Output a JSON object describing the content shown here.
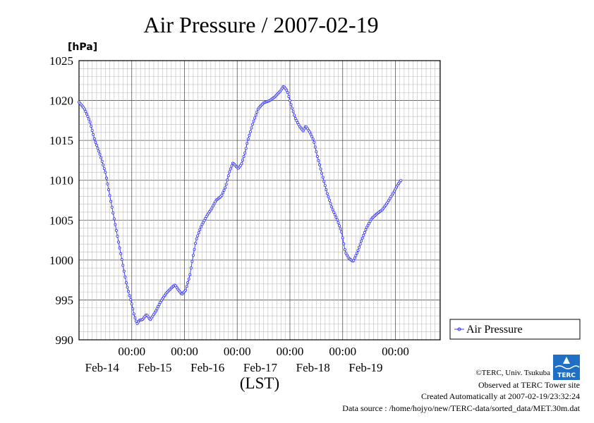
{
  "chart_data": {
    "type": "line",
    "title": "Air Pressure / 2007-02-19",
    "ylabel": "[hPa]",
    "xlabel": "(LST)",
    "ylim": [
      990,
      1025
    ],
    "yticks": [
      990,
      995,
      1000,
      1005,
      1010,
      1015,
      1020,
      1025
    ],
    "xlim_days": [
      13.0,
      19.85
    ],
    "grid": true,
    "legend_position": "right",
    "xticks": [
      {
        "time": "00:00",
        "date": "Feb-14"
      },
      {
        "time": "00:00",
        "date": "Feb-15"
      },
      {
        "time": "00:00",
        "date": "Feb-16"
      },
      {
        "time": "00:00",
        "date": "Feb-17"
      },
      {
        "time": "00:00",
        "date": "Feb-18"
      },
      {
        "time": "00:00",
        "date": "Feb-19"
      }
    ],
    "series": [
      {
        "name": "Air Pressure",
        "color": "#3333ff",
        "marker": "circle",
        "points": [
          [
            13.0,
            1019.8
          ],
          [
            13.1,
            1019.0
          ],
          [
            13.2,
            1017.5
          ],
          [
            13.3,
            1015.0
          ],
          [
            13.4,
            1013.2
          ],
          [
            13.5,
            1011.0
          ],
          [
            13.6,
            1007.5
          ],
          [
            13.7,
            1004.0
          ],
          [
            13.8,
            1000.5
          ],
          [
            13.9,
            997.0
          ],
          [
            14.0,
            994.5
          ],
          [
            14.05,
            993.0
          ],
          [
            14.1,
            992.0
          ],
          [
            14.15,
            992.5
          ],
          [
            14.2,
            992.5
          ],
          [
            14.28,
            993.2
          ],
          [
            14.35,
            992.5
          ],
          [
            14.45,
            993.5
          ],
          [
            14.55,
            994.8
          ],
          [
            14.65,
            995.8
          ],
          [
            14.75,
            996.5
          ],
          [
            14.82,
            996.9
          ],
          [
            14.88,
            996.3
          ],
          [
            14.95,
            995.7
          ],
          [
            15.02,
            996.2
          ],
          [
            15.1,
            998.0
          ],
          [
            15.15,
            1000.0
          ],
          [
            15.22,
            1002.5
          ],
          [
            15.32,
            1004.3
          ],
          [
            15.42,
            1005.5
          ],
          [
            15.52,
            1006.5
          ],
          [
            15.6,
            1007.5
          ],
          [
            15.7,
            1008.0
          ],
          [
            15.78,
            1009.2
          ],
          [
            15.85,
            1011.0
          ],
          [
            15.92,
            1012.2
          ],
          [
            15.97,
            1011.8
          ],
          [
            16.02,
            1011.5
          ],
          [
            16.08,
            1012.0
          ],
          [
            16.15,
            1013.5
          ],
          [
            16.2,
            1015.0
          ],
          [
            16.3,
            1017.2
          ],
          [
            16.4,
            1019.0
          ],
          [
            16.5,
            1019.7
          ],
          [
            16.62,
            1020.0
          ],
          [
            16.72,
            1020.5
          ],
          [
            16.82,
            1021.2
          ],
          [
            16.88,
            1021.8
          ],
          [
            16.95,
            1021.2
          ],
          [
            17.02,
            1019.5
          ],
          [
            17.1,
            1017.8
          ],
          [
            17.18,
            1016.8
          ],
          [
            17.25,
            1016.2
          ],
          [
            17.3,
            1016.8
          ],
          [
            17.38,
            1016.0
          ],
          [
            17.45,
            1015.0
          ],
          [
            17.52,
            1013.0
          ],
          [
            17.6,
            1011.0
          ],
          [
            17.7,
            1008.5
          ],
          [
            17.8,
            1006.5
          ],
          [
            17.9,
            1005.0
          ],
          [
            17.98,
            1003.5
          ],
          [
            18.05,
            1001.0
          ],
          [
            18.12,
            1000.2
          ],
          [
            18.2,
            999.8
          ],
          [
            18.28,
            1001.0
          ],
          [
            18.36,
            1002.5
          ],
          [
            18.45,
            1004.0
          ],
          [
            18.55,
            1005.2
          ],
          [
            18.65,
            1005.8
          ],
          [
            18.75,
            1006.3
          ],
          [
            18.85,
            1007.2
          ],
          [
            18.95,
            1008.3
          ],
          [
            19.05,
            1009.5
          ],
          [
            19.12,
            1010.1
          ]
        ]
      }
    ]
  },
  "logo": {
    "text": "TERC",
    "color": "#1f6fc4"
  },
  "footer": {
    "copyright": "©TERC, Univ. Tsukuba",
    "observed": "Observed at TERC Tower site",
    "created": "Created Automatically at 2007-02-19/23:32:24",
    "source": "Data source : /home/hojyo/new/TERC-data/sorted_data/MET.30m.dat"
  }
}
